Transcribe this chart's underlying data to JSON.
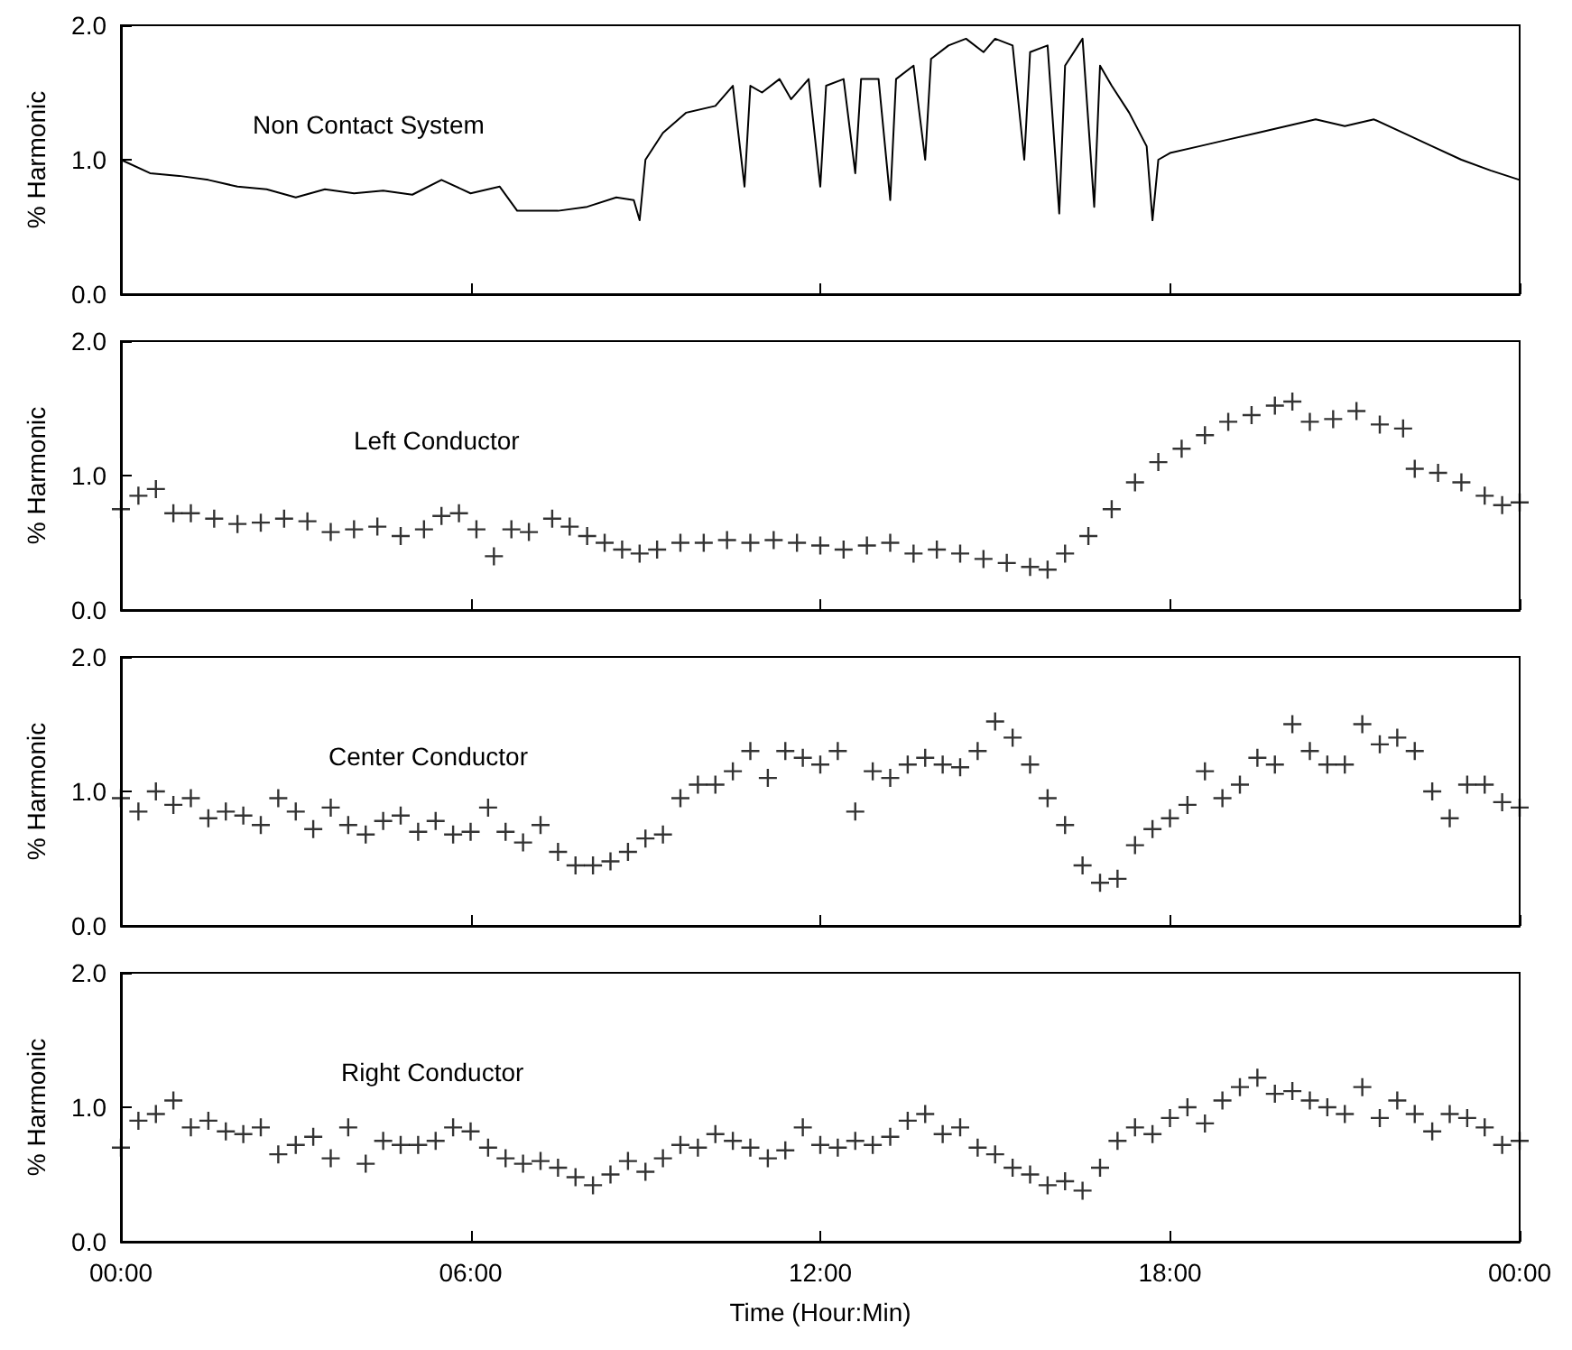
{
  "chart_data": [
    {
      "type": "line",
      "title": "Non Contact System",
      "ylabel": "% Harmonic",
      "color": "#000000",
      "marker": "none",
      "tick_labels": "y",
      "x": [
        0,
        0.5,
        1,
        1.5,
        2,
        2.5,
        3,
        3.5,
        4,
        4.5,
        5,
        5.5,
        6,
        6.5,
        6.8,
        7.5,
        8,
        8.5,
        8.8,
        8.9,
        9.0,
        9.3,
        9.7,
        10.2,
        10.5,
        10.7,
        10.8,
        11,
        11.3,
        11.5,
        11.8,
        12,
        12.1,
        12.4,
        12.6,
        12.7,
        13,
        13.2,
        13.3,
        13.6,
        13.8,
        13.9,
        14.2,
        14.5,
        14.8,
        15,
        15.3,
        15.5,
        15.6,
        15.9,
        16.1,
        16.2,
        16.5,
        16.7,
        16.8,
        17,
        17.3,
        17.6,
        17.7,
        17.8,
        18,
        18.5,
        19,
        19.5,
        20,
        20.5,
        21,
        21.5,
        22,
        22.5,
        23,
        23.5,
        24
      ],
      "values": [
        1.0,
        0.9,
        0.88,
        0.85,
        0.8,
        0.78,
        0.72,
        0.78,
        0.75,
        0.77,
        0.74,
        0.85,
        0.75,
        0.8,
        0.62,
        0.62,
        0.65,
        0.72,
        0.7,
        0.55,
        1.0,
        1.2,
        1.35,
        1.4,
        1.55,
        0.8,
        1.55,
        1.5,
        1.6,
        1.45,
        1.6,
        0.8,
        1.55,
        1.6,
        0.9,
        1.6,
        1.6,
        0.7,
        1.6,
        1.7,
        1.0,
        1.75,
        1.85,
        1.9,
        1.8,
        1.9,
        1.85,
        1.0,
        1.8,
        1.85,
        0.6,
        1.7,
        1.9,
        0.65,
        1.7,
        1.55,
        1.35,
        1.1,
        0.55,
        1.0,
        1.05,
        1.1,
        1.15,
        1.2,
        1.25,
        1.3,
        1.25,
        1.3,
        1.2,
        1.1,
        1.0,
        0.92,
        0.85
      ],
      "xlim": [
        0,
        24
      ],
      "xticks": [
        {
          "value": 0,
          "label": null
        },
        {
          "value": 6,
          "label": null
        },
        {
          "value": 12,
          "label": null
        },
        {
          "value": 18,
          "label": null
        },
        {
          "value": 24,
          "label": null
        }
      ],
      "ylim": [
        0,
        2
      ],
      "yticks": [
        {
          "value": 0,
          "label": "0.0"
        },
        {
          "value": 1,
          "label": "1.0"
        },
        {
          "value": 2,
          "label": "2.0"
        }
      ]
    },
    {
      "type": "scatter",
      "title": "Left Conductor",
      "ylabel": "% Harmonic",
      "color": "#000000",
      "marker": "cross",
      "tick_labels": "y",
      "x": [
        0,
        0.3,
        0.6,
        0.9,
        1.2,
        1.6,
        2,
        2.4,
        2.8,
        3.2,
        3.6,
        4,
        4.4,
        4.8,
        5.2,
        5.5,
        5.8,
        6.1,
        6.4,
        6.7,
        7,
        7.4,
        7.7,
        8,
        8.3,
        8.6,
        8.9,
        9.2,
        9.6,
        10,
        10.4,
        10.8,
        11.2,
        11.6,
        12,
        12.4,
        12.8,
        13.2,
        13.6,
        14,
        14.4,
        14.8,
        15.2,
        15.6,
        15.9,
        16.2,
        16.6,
        17,
        17.4,
        17.8,
        18.2,
        18.6,
        19,
        19.4,
        19.8,
        20.1,
        20.4,
        20.8,
        21.2,
        21.6,
        22,
        22.2,
        22.6,
        23,
        23.4,
        23.7,
        24
      ],
      "values": [
        0.75,
        0.85,
        0.9,
        0.72,
        0.72,
        0.68,
        0.64,
        0.65,
        0.68,
        0.66,
        0.58,
        0.6,
        0.62,
        0.55,
        0.6,
        0.7,
        0.72,
        0.6,
        0.4,
        0.6,
        0.58,
        0.68,
        0.62,
        0.55,
        0.5,
        0.45,
        0.42,
        0.45,
        0.5,
        0.5,
        0.52,
        0.5,
        0.52,
        0.5,
        0.48,
        0.45,
        0.48,
        0.5,
        0.42,
        0.45,
        0.42,
        0.38,
        0.35,
        0.32,
        0.3,
        0.42,
        0.55,
        0.75,
        0.95,
        1.1,
        1.2,
        1.3,
        1.4,
        1.45,
        1.52,
        1.55,
        1.4,
        1.42,
        1.48,
        1.38,
        1.35,
        1.05,
        1.02,
        0.95,
        0.85,
        0.78,
        0.8
      ],
      "xlim": [
        0,
        24
      ],
      "xticks": [
        {
          "value": 0,
          "label": null
        },
        {
          "value": 6,
          "label": null
        },
        {
          "value": 12,
          "label": null
        },
        {
          "value": 18,
          "label": null
        },
        {
          "value": 24,
          "label": null
        }
      ],
      "ylim": [
        0,
        2
      ],
      "yticks": [
        {
          "value": 0,
          "label": "0.0"
        },
        {
          "value": 1,
          "label": "1.0"
        },
        {
          "value": 2,
          "label": "2.0"
        }
      ]
    },
    {
      "type": "scatter",
      "title": "Center Conductor",
      "ylabel": "% Harmonic",
      "color": "#000000",
      "marker": "cross",
      "tick_labels": "y",
      "x": [
        0,
        0.3,
        0.6,
        0.9,
        1.2,
        1.5,
        1.8,
        2.1,
        2.4,
        2.7,
        3.0,
        3.3,
        3.6,
        3.9,
        4.2,
        4.5,
        4.8,
        5.1,
        5.4,
        5.7,
        6.0,
        6.3,
        6.6,
        6.9,
        7.2,
        7.5,
        7.8,
        8.1,
        8.4,
        8.7,
        9.0,
        9.3,
        9.6,
        9.9,
        10.2,
        10.5,
        10.8,
        11.1,
        11.4,
        11.7,
        12,
        12.3,
        12.6,
        12.9,
        13.2,
        13.5,
        13.8,
        14.1,
        14.4,
        14.7,
        15.0,
        15.3,
        15.6,
        15.9,
        16.2,
        16.5,
        16.8,
        17.1,
        17.4,
        17.7,
        18,
        18.3,
        18.6,
        18.9,
        19.2,
        19.5,
        19.8,
        20.1,
        20.4,
        20.7,
        21,
        21.3,
        21.6,
        21.9,
        22.2,
        22.5,
        22.8,
        23.1,
        23.4,
        23.7,
        24
      ],
      "values": [
        0.95,
        0.85,
        1.0,
        0.9,
        0.95,
        0.8,
        0.85,
        0.82,
        0.75,
        0.95,
        0.85,
        0.72,
        0.88,
        0.75,
        0.68,
        0.78,
        0.82,
        0.7,
        0.78,
        0.68,
        0.7,
        0.88,
        0.7,
        0.62,
        0.75,
        0.55,
        0.45,
        0.45,
        0.48,
        0.55,
        0.65,
        0.68,
        0.95,
        1.05,
        1.05,
        1.15,
        1.3,
        1.1,
        1.3,
        1.25,
        1.2,
        1.3,
        0.85,
        1.15,
        1.1,
        1.2,
        1.25,
        1.2,
        1.18,
        1.3,
        1.52,
        1.4,
        1.2,
        0.95,
        0.75,
        0.45,
        0.32,
        0.35,
        0.6,
        0.72,
        0.8,
        0.9,
        1.15,
        0.95,
        1.05,
        1.25,
        1.2,
        1.5,
        1.3,
        1.2,
        1.2,
        1.5,
        1.35,
        1.4,
        1.3,
        1.0,
        0.8,
        1.05,
        1.05,
        0.92,
        0.88
      ],
      "xlim": [
        0,
        24
      ],
      "xticks": [
        {
          "value": 0,
          "label": null
        },
        {
          "value": 6,
          "label": null
        },
        {
          "value": 12,
          "label": null
        },
        {
          "value": 18,
          "label": null
        },
        {
          "value": 24,
          "label": null
        }
      ],
      "ylim": [
        0,
        2
      ],
      "yticks": [
        {
          "value": 0,
          "label": "0.0"
        },
        {
          "value": 1,
          "label": "1.0"
        },
        {
          "value": 2,
          "label": "2.0"
        }
      ]
    },
    {
      "type": "scatter",
      "title": "Right Conductor",
      "ylabel": "% Harmonic",
      "xlabel": "Time (Hour:Min)",
      "color": "#000000",
      "marker": "cross",
      "x": [
        0,
        0.3,
        0.6,
        0.9,
        1.2,
        1.5,
        1.8,
        2.1,
        2.4,
        2.7,
        3.0,
        3.3,
        3.6,
        3.9,
        4.2,
        4.5,
        4.8,
        5.1,
        5.4,
        5.7,
        6.0,
        6.3,
        6.6,
        6.9,
        7.2,
        7.5,
        7.8,
        8.1,
        8.4,
        8.7,
        9.0,
        9.3,
        9.6,
        9.9,
        10.2,
        10.5,
        10.8,
        11.1,
        11.4,
        11.7,
        12,
        12.3,
        12.6,
        12.9,
        13.2,
        13.5,
        13.8,
        14.1,
        14.4,
        14.7,
        15.0,
        15.3,
        15.6,
        15.9,
        16.2,
        16.5,
        16.8,
        17.1,
        17.4,
        17.7,
        18,
        18.3,
        18.6,
        18.9,
        19.2,
        19.5,
        19.8,
        20.1,
        20.4,
        20.7,
        21,
        21.3,
        21.6,
        21.9,
        22.2,
        22.5,
        22.8,
        23.1,
        23.4,
        23.7,
        24
      ],
      "values": [
        0.7,
        0.9,
        0.95,
        1.05,
        0.85,
        0.9,
        0.82,
        0.8,
        0.85,
        0.65,
        0.72,
        0.78,
        0.62,
        0.85,
        0.58,
        0.75,
        0.72,
        0.72,
        0.75,
        0.85,
        0.82,
        0.7,
        0.62,
        0.58,
        0.6,
        0.55,
        0.48,
        0.42,
        0.5,
        0.6,
        0.52,
        0.62,
        0.72,
        0.7,
        0.8,
        0.75,
        0.7,
        0.62,
        0.68,
        0.85,
        0.72,
        0.7,
        0.75,
        0.72,
        0.78,
        0.9,
        0.95,
        0.8,
        0.85,
        0.7,
        0.65,
        0.55,
        0.5,
        0.42,
        0.45,
        0.38,
        0.55,
        0.75,
        0.85,
        0.8,
        0.92,
        1.0,
        0.88,
        1.05,
        1.15,
        1.22,
        1.1,
        1.12,
        1.05,
        1.0,
        0.95,
        1.15,
        0.92,
        1.05,
        0.95,
        0.82,
        0.95,
        0.92,
        0.85,
        0.72,
        0.75
      ],
      "xlim": [
        0,
        24
      ],
      "xticks": [
        {
          "value": 0,
          "label": "00:00"
        },
        {
          "value": 6,
          "label": "06:00"
        },
        {
          "value": 12,
          "label": "12:00"
        },
        {
          "value": 18,
          "label": "18:00"
        },
        {
          "value": 24,
          "label": "00:00"
        }
      ],
      "ylim": [
        0,
        2
      ],
      "yticks": [
        {
          "value": 0,
          "label": "0.0"
        },
        {
          "value": 1,
          "label": "1.0"
        },
        {
          "value": 2,
          "label": "2.0"
        }
      ]
    }
  ]
}
